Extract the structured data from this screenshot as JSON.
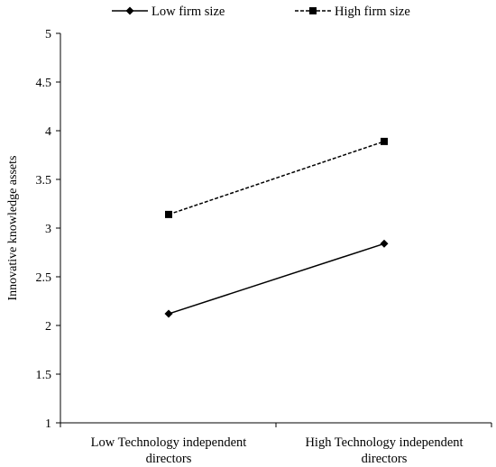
{
  "chart_data": {
    "type": "line",
    "title": "",
    "xlabel": "",
    "ylabel": "Innovative knowledge assets",
    "ylim": [
      1,
      5
    ],
    "yticks": [
      "1",
      "1.5",
      "2",
      "2.5",
      "3",
      "3.5",
      "4",
      "4.5",
      "5"
    ],
    "categories": [
      [
        "Low Technology independent",
        "directors"
      ],
      [
        "High Technology independent",
        "directors"
      ]
    ],
    "grid": false,
    "legend_position": "top",
    "series": [
      {
        "name": "Low firm size",
        "values": [
          2.12,
          2.84
        ],
        "marker": "diamond",
        "line_style": "solid",
        "color": "#000000"
      },
      {
        "name": "High firm size",
        "values": [
          3.14,
          3.89
        ],
        "marker": "square",
        "line_style": "dashed",
        "color": "#000000"
      }
    ]
  }
}
